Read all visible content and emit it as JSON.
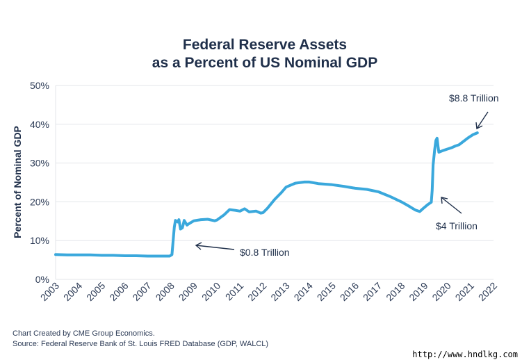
{
  "chart_data": {
    "type": "line",
    "title": [
      "Federal Reserve Assets",
      "as a Percent of US Nominal GDP"
    ],
    "ylabel": "Percent of Nominal GDP",
    "xlabel": "",
    "xlim": [
      2003,
      2022
    ],
    "ylim": [
      0,
      50
    ],
    "yticks": [
      0,
      10,
      20,
      30,
      40,
      50
    ],
    "ytick_labels": [
      "0%",
      "10%",
      "20%",
      "30%",
      "40%",
      "50%"
    ],
    "xticks": [
      2003,
      2004,
      2005,
      2006,
      2007,
      2008,
      2009,
      2010,
      2011,
      2012,
      2013,
      2014,
      2015,
      2016,
      2017,
      2018,
      2019,
      2020,
      2021,
      2022
    ],
    "xtick_labels": [
      "2003",
      "2004",
      "2005",
      "2006",
      "2007",
      "2008",
      "2009",
      "2010",
      "2011",
      "2012",
      "2013",
      "2014",
      "2015",
      "2016",
      "2017",
      "2018",
      "2019",
      "2020",
      "2021",
      "2022"
    ],
    "grid": true,
    "series": [
      {
        "color": "#3aa8dc",
        "points": [
          [
            2003.0,
            6.4
          ],
          [
            2003.5,
            6.3
          ],
          [
            2004.0,
            6.3
          ],
          [
            2004.5,
            6.3
          ],
          [
            2005.0,
            6.2
          ],
          [
            2005.5,
            6.2
          ],
          [
            2006.0,
            6.1
          ],
          [
            2006.5,
            6.1
          ],
          [
            2007.0,
            6.0
          ],
          [
            2007.5,
            6.0
          ],
          [
            2007.95,
            6.0
          ],
          [
            2008.05,
            6.4
          ],
          [
            2008.1,
            10.0
          ],
          [
            2008.15,
            13.5
          ],
          [
            2008.2,
            15.2
          ],
          [
            2008.3,
            14.8
          ],
          [
            2008.35,
            15.4
          ],
          [
            2008.42,
            13.0
          ],
          [
            2008.5,
            13.3
          ],
          [
            2008.58,
            15.2
          ],
          [
            2008.7,
            14.0
          ],
          [
            2008.8,
            14.4
          ],
          [
            2009.0,
            15.1
          ],
          [
            2009.3,
            15.4
          ],
          [
            2009.6,
            15.5
          ],
          [
            2009.9,
            15.1
          ],
          [
            2010.0,
            15.3
          ],
          [
            2010.3,
            16.6
          ],
          [
            2010.55,
            18.0
          ],
          [
            2010.8,
            17.8
          ],
          [
            2011.0,
            17.6
          ],
          [
            2011.2,
            18.2
          ],
          [
            2011.4,
            17.4
          ],
          [
            2011.7,
            17.6
          ],
          [
            2011.9,
            17.1
          ],
          [
            2012.0,
            17.2
          ],
          [
            2012.2,
            18.4
          ],
          [
            2012.5,
            20.6
          ],
          [
            2012.8,
            22.4
          ],
          [
            2013.0,
            23.8
          ],
          [
            2013.4,
            24.8
          ],
          [
            2013.8,
            25.1
          ],
          [
            2014.0,
            25.1
          ],
          [
            2014.4,
            24.7
          ],
          [
            2014.8,
            24.5
          ],
          [
            2015.0,
            24.4
          ],
          [
            2015.5,
            24.0
          ],
          [
            2016.0,
            23.5
          ],
          [
            2016.5,
            23.2
          ],
          [
            2017.0,
            22.6
          ],
          [
            2017.5,
            21.4
          ],
          [
            2018.0,
            20.0
          ],
          [
            2018.3,
            19.0
          ],
          [
            2018.6,
            17.9
          ],
          [
            2018.8,
            17.5
          ],
          [
            2018.95,
            18.3
          ],
          [
            2019.15,
            19.3
          ],
          [
            2019.3,
            19.9
          ],
          [
            2019.34,
            23.0
          ],
          [
            2019.38,
            29.5
          ],
          [
            2019.45,
            33.5
          ],
          [
            2019.5,
            35.8
          ],
          [
            2019.55,
            36.4
          ],
          [
            2019.6,
            34.0
          ],
          [
            2019.63,
            32.8
          ],
          [
            2019.8,
            33.2
          ],
          [
            2020.0,
            33.6
          ],
          [
            2020.2,
            34.0
          ],
          [
            2020.35,
            34.4
          ],
          [
            2020.5,
            34.7
          ],
          [
            2020.7,
            35.6
          ],
          [
            2020.9,
            36.5
          ],
          [
            2021.1,
            37.3
          ],
          [
            2021.3,
            37.8
          ]
        ]
      }
    ],
    "annotations": [
      {
        "text": "$0.8 Trillion"
      },
      {
        "text": "$4 Trillion"
      },
      {
        "text": "$8.8 Trillion"
      }
    ]
  },
  "footer": {
    "line1": "Chart Created by CME Group Economics.",
    "line2": "Source: Federal Reserve Bank of St. Louis FRED Database (GDP, WALCL)"
  },
  "watermark": "http://www.hndlkg.com"
}
